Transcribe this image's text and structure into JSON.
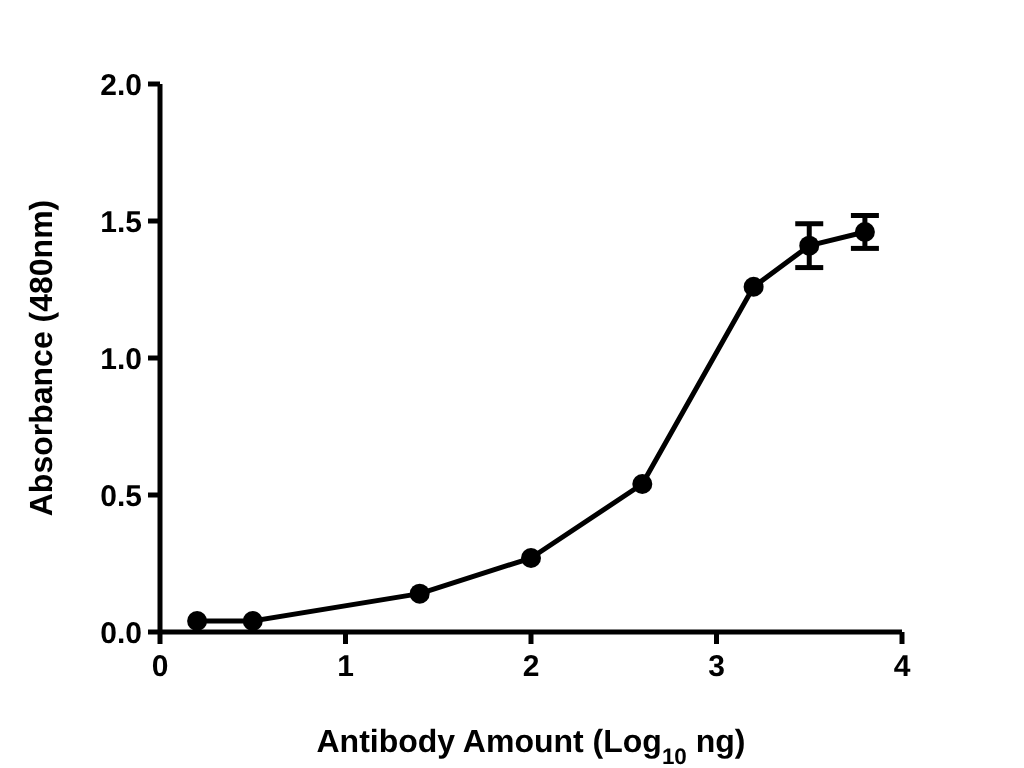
{
  "chart_data": {
    "type": "line",
    "xlabel": "Antibody Amount (Log$_{10}$ ng)",
    "ylabel": "Absorbance (480nm)",
    "x": [
      0.2,
      0.5,
      1.4,
      2.0,
      2.6,
      3.2,
      3.5,
      3.8
    ],
    "series": [
      {
        "color": "#000000",
        "values": [
          0.04,
          0.04,
          0.14,
          0.27,
          0.54,
          1.26,
          1.41,
          1.46
        ],
        "errors": [
          null,
          null,
          null,
          null,
          null,
          null,
          0.08,
          0.06
        ]
      }
    ],
    "xlim": [
      0,
      4
    ],
    "xticks": [
      0,
      1,
      2,
      3,
      4
    ],
    "ylim": [
      0,
      2
    ],
    "yticks": [
      {
        "value": 0,
        "label": "0.0"
      },
      {
        "value": 0.5,
        "label": "0.5"
      },
      {
        "value": 1,
        "label": "1.0"
      },
      {
        "value": 1.5,
        "label": "1.5"
      },
      {
        "value": 2,
        "label": "2.0"
      }
    ],
    "marker": "circle",
    "line_style": "solid"
  }
}
